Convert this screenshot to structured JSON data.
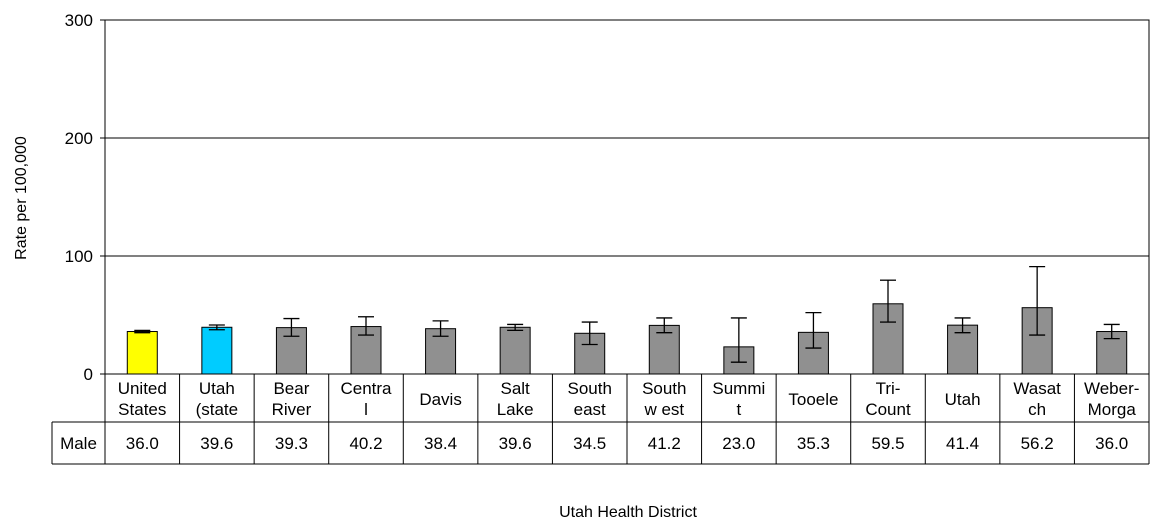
{
  "chart_data": {
    "type": "bar",
    "title": "",
    "xlabel": "Utah Health District",
    "ylabel": "Rate per 100,000",
    "ylim": [
      0,
      300
    ],
    "yticks": [
      0,
      100,
      200,
      300
    ],
    "grid": true,
    "categories": [
      [
        "United",
        "States"
      ],
      [
        "Utah",
        "(state"
      ],
      [
        "Bear",
        "River"
      ],
      [
        "Centra",
        "l"
      ],
      [
        "Davis"
      ],
      [
        "Salt",
        "Lake"
      ],
      [
        "South",
        "east"
      ],
      [
        "South",
        "w est"
      ],
      [
        "Summi",
        "t"
      ],
      [
        "Tooele"
      ],
      [
        "Tri-",
        "Count"
      ],
      [
        "Utah"
      ],
      [
        "Wasat",
        "ch"
      ],
      [
        "Weber-",
        "Morga"
      ]
    ],
    "series": [
      {
        "name": "Male",
        "values": [
          36.0,
          39.6,
          39.3,
          40.2,
          38.4,
          39.6,
          34.5,
          41.2,
          23.0,
          35.3,
          59.5,
          41.4,
          56.2,
          36.0
        ],
        "labels": [
          "36.0",
          "39.6",
          "39.3",
          "40.2",
          "38.4",
          "39.6",
          "34.5",
          "41.2",
          "23.0",
          "35.3",
          "59.5",
          "41.4",
          "56.2",
          "36.0"
        ],
        "ci_low": [
          35.0,
          37.5,
          32.0,
          33.0,
          32.0,
          37.0,
          25.0,
          35.0,
          10.0,
          22.0,
          44.0,
          35.0,
          33.0,
          30.0
        ],
        "ci_high": [
          37.0,
          41.5,
          47.0,
          48.5,
          45.0,
          42.0,
          44.0,
          47.5,
          47.5,
          52.0,
          79.5,
          47.5,
          91.0,
          42.0
        ],
        "colors": [
          "#ffff00",
          "#00ccff",
          "#909090",
          "#909090",
          "#909090",
          "#909090",
          "#909090",
          "#909090",
          "#909090",
          "#909090",
          "#909090",
          "#909090",
          "#909090",
          "#909090"
        ]
      }
    ]
  }
}
